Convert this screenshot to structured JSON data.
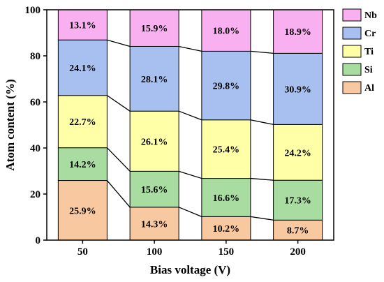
{
  "chart_data": {
    "type": "bar",
    "stacked": true,
    "categories": [
      "50",
      "100",
      "150",
      "200"
    ],
    "series": [
      {
        "name": "Al",
        "values": [
          25.9,
          14.3,
          10.2,
          8.7
        ],
        "color": "#F8C8A0"
      },
      {
        "name": "Si",
        "values": [
          14.2,
          15.6,
          16.6,
          17.3
        ],
        "color": "#A8DCA0"
      },
      {
        "name": "Ti",
        "values": [
          22.7,
          26.1,
          25.4,
          24.2
        ],
        "color": "#FFFFA8"
      },
      {
        "name": "Cr",
        "values": [
          24.1,
          28.1,
          29.8,
          30.9
        ],
        "color": "#A8C0F0"
      },
      {
        "name": "Nb",
        "values": [
          13.1,
          15.9,
          18.0,
          18.9
        ],
        "color": "#F8B0F0"
      }
    ],
    "labels": [
      [
        "25.9%",
        "14.3%",
        "10.2%",
        "8.7%"
      ],
      [
        "14.2%",
        "15.6%",
        "16.6%",
        "17.3%"
      ],
      [
        "22.7%",
        "26.1%",
        "25.4%",
        "24.2%"
      ],
      [
        "24.1%",
        "28.1%",
        "29.8%",
        "30.9%"
      ],
      [
        "13.1%",
        "15.9%",
        "18.0%",
        "18.9%"
      ]
    ],
    "legend_order": [
      "Nb",
      "Cr",
      "Ti",
      "Si",
      "Al"
    ],
    "legend_position": "right",
    "xlabel": "Bias voltage (V)",
    "ylabel": "Atom content (%)",
    "ylim": [
      0,
      100
    ],
    "yticks": [
      0,
      20,
      40,
      60,
      80,
      100
    ],
    "grid": false,
    "connector_lines": true
  }
}
